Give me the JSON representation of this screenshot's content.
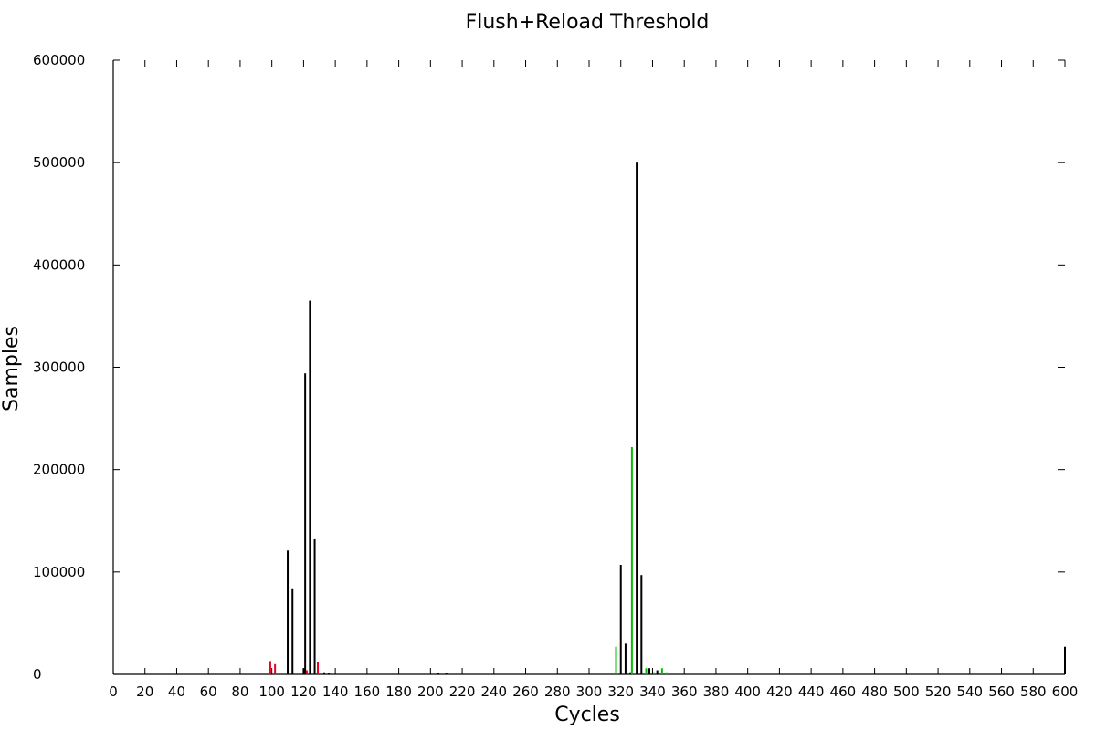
{
  "chart_data": {
    "type": "bar",
    "title": "Flush+Reload Threshold",
    "xlabel": "Cycles",
    "ylabel": "Samples",
    "xlim": [
      0,
      600
    ],
    "ylim": [
      0,
      600000
    ],
    "xticks": [
      "0",
      "20",
      "40",
      "60",
      "80",
      "100",
      "120",
      "140",
      "160",
      "180",
      "200",
      "220",
      "240",
      "260",
      "280",
      "300",
      "320",
      "340",
      "360",
      "380",
      "400",
      "420",
      "440",
      "460",
      "480",
      "500",
      "520",
      "540",
      "560",
      "580",
      "600"
    ],
    "yticks": [
      "0",
      "100000",
      "200000",
      "300000",
      "400000",
      "500000",
      "600000"
    ],
    "grid": false,
    "legend": "none",
    "series": [
      {
        "color": "#000000",
        "points": [
          {
            "x": 110,
            "y": 121000
          },
          {
            "x": 113,
            "y": 84000
          },
          {
            "x": 120,
            "y": 6000
          },
          {
            "x": 121,
            "y": 294000
          },
          {
            "x": 124,
            "y": 365000
          },
          {
            "x": 127,
            "y": 132000
          },
          {
            "x": 133,
            "y": 2000
          },
          {
            "x": 136,
            "y": 1000
          },
          {
            "x": 205,
            "y": 1000
          },
          {
            "x": 210,
            "y": 1000
          },
          {
            "x": 320,
            "y": 107000
          },
          {
            "x": 323,
            "y": 30000
          },
          {
            "x": 326,
            "y": 2000
          },
          {
            "x": 330,
            "y": 500000
          },
          {
            "x": 333,
            "y": 97000
          },
          {
            "x": 338,
            "y": 6000
          },
          {
            "x": 343,
            "y": 4000
          },
          {
            "x": 600,
            "y": 27000
          }
        ]
      },
      {
        "color": "#e8001c",
        "points": [
          {
            "x": 99,
            "y": 13000
          },
          {
            "x": 102,
            "y": 10000
          },
          {
            "x": 122,
            "y": 4000
          },
          {
            "x": 129,
            "y": 12000
          }
        ]
      },
      {
        "color": "#00c000",
        "points": [
          {
            "x": 317,
            "y": 27000
          },
          {
            "x": 327,
            "y": 222000
          },
          {
            "x": 336,
            "y": 6000
          },
          {
            "x": 341,
            "y": 2000
          },
          {
            "x": 346,
            "y": 6000
          },
          {
            "x": 349,
            "y": 2000
          }
        ]
      }
    ]
  }
}
